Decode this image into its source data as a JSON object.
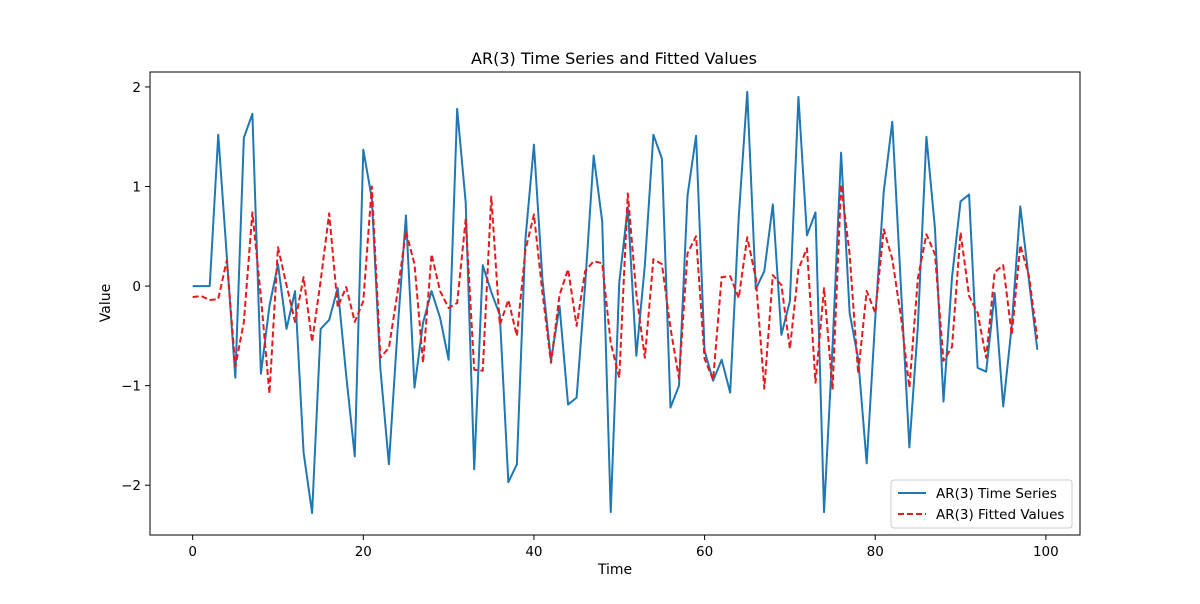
{
  "chart_data": {
    "type": "line",
    "title": "AR(3) Time Series and Fitted Values",
    "xlabel": "Time",
    "ylabel": "Value",
    "xlim": [
      -5,
      104
    ],
    "ylim": [
      -2.5,
      2.15
    ],
    "xticks": [
      0,
      20,
      40,
      60,
      80,
      100
    ],
    "yticks": [
      -2,
      -1,
      0,
      1,
      2
    ],
    "ytick_labels": [
      "−2",
      "−1",
      "0",
      "1",
      "2"
    ],
    "grid": false,
    "legend_position": "bottom-right",
    "series": [
      {
        "name": "AR(3) Time Series",
        "color": "#1f77b4",
        "style": "solid",
        "x": [
          0,
          1,
          2,
          3,
          4,
          5,
          6,
          7,
          8,
          9,
          10,
          11,
          12,
          13,
          14,
          15,
          16,
          17,
          18,
          19,
          20,
          21,
          22,
          23,
          24,
          25,
          26,
          27,
          28,
          29,
          30,
          31,
          32,
          33,
          34,
          35,
          36,
          37,
          38,
          39,
          40,
          41,
          42,
          43,
          44,
          45,
          46,
          47,
          48,
          49,
          50,
          51,
          52,
          53,
          54,
          55,
          56,
          57,
          58,
          59,
          60,
          61,
          62,
          63,
          64,
          65,
          66,
          67,
          68,
          69,
          70,
          71,
          72,
          73,
          74,
          75,
          76,
          77,
          78,
          79,
          80,
          81,
          82,
          83,
          84,
          85,
          86,
          87,
          88,
          89,
          90,
          91,
          92,
          93,
          94,
          95,
          96,
          97,
          98,
          99
        ],
        "y": [
          0,
          0,
          0,
          1.52,
          0.3,
          -0.92,
          1.49,
          1.73,
          -0.88,
          -0.2,
          0.22,
          -0.43,
          -0.05,
          -1.67,
          -2.28,
          -0.43,
          -0.34,
          -0.02,
          -0.9,
          -1.71,
          1.37,
          0.88,
          -0.83,
          -1.79,
          -0.46,
          0.71,
          -1.02,
          -0.37,
          -0.05,
          -0.32,
          -0.74,
          1.78,
          0.84,
          -1.84,
          0.21,
          -0.06,
          -0.29,
          -1.97,
          -1.79,
          0.47,
          1.42,
          0.06,
          -0.75,
          -0.2,
          -1.19,
          -1.12,
          0.01,
          1.31,
          0.65,
          -2.27,
          0.04,
          0.79,
          -0.7,
          0.21,
          1.52,
          1.28,
          -1.22,
          -1.0,
          0.91,
          1.51,
          -0.65,
          -0.95,
          -0.74,
          -1.07,
          0.69,
          1.95,
          -0.03,
          0.15,
          0.82,
          -0.49,
          -0.15,
          1.9,
          0.51,
          0.74,
          -2.27,
          -0.6,
          1.34,
          -0.27,
          -0.73,
          -1.78,
          -0.33,
          0.95,
          1.65,
          0.01,
          -1.62,
          -0.4,
          1.5,
          0.58,
          -1.16,
          0.09,
          0.85,
          0.92,
          -0.82,
          -0.86,
          -0.07,
          -1.21,
          -0.4,
          0.8,
          0.07,
          -0.64
        ]
      },
      {
        "name": "AR(3) Fitted Values",
        "color": "#e41a1c",
        "style": "dashed",
        "x": [
          0,
          1,
          2,
          3,
          4,
          5,
          6,
          7,
          8,
          9,
          10,
          11,
          12,
          13,
          14,
          15,
          16,
          17,
          18,
          19,
          20,
          21,
          22,
          23,
          24,
          25,
          26,
          27,
          28,
          29,
          30,
          31,
          32,
          33,
          34,
          35,
          36,
          37,
          38,
          39,
          40,
          41,
          42,
          43,
          44,
          45,
          46,
          47,
          48,
          49,
          50,
          51,
          52,
          53,
          54,
          55,
          56,
          57,
          58,
          59,
          60,
          61,
          62,
          63,
          64,
          65,
          66,
          67,
          68,
          69,
          70,
          71,
          72,
          73,
          74,
          75,
          76,
          77,
          78,
          79,
          80,
          81,
          82,
          83,
          84,
          85,
          86,
          87,
          88,
          89,
          90,
          91,
          92,
          93,
          94,
          95,
          96,
          97,
          98,
          99
        ],
        "y": [
          -0.11,
          -0.1,
          -0.14,
          -0.13,
          0.26,
          -0.81,
          -0.36,
          0.74,
          -0.11,
          -1.08,
          0.39,
          0.01,
          -0.36,
          0.09,
          -0.56,
          0.05,
          0.73,
          -0.21,
          -0.01,
          -0.36,
          -0.15,
          1.0,
          -0.72,
          -0.62,
          -0.07,
          0.55,
          0.22,
          -0.77,
          0.32,
          -0.05,
          -0.22,
          -0.17,
          0.67,
          -0.84,
          -0.85,
          0.9,
          -0.39,
          -0.14,
          -0.5,
          0.36,
          0.72,
          -0.07,
          -0.77,
          -0.09,
          0.17,
          -0.4,
          0.15,
          0.25,
          0.23,
          -0.57,
          -0.92,
          0.93,
          -0.08,
          -0.72,
          0.27,
          0.22,
          -0.42,
          -0.93,
          0.33,
          0.5,
          -0.73,
          -0.94,
          0.09,
          0.1,
          -0.12,
          0.49,
          0.08,
          -1.03,
          0.11,
          0.01,
          -0.63,
          0.17,
          0.38,
          -0.97,
          -0.02,
          -1.04,
          1.02,
          0.32,
          -0.88,
          -0.05,
          -0.27,
          0.57,
          0.27,
          -0.3,
          -1.02,
          0.08,
          0.52,
          0.32,
          -0.75,
          -0.61,
          0.54,
          -0.1,
          -0.27,
          -0.72,
          0.14,
          0.21,
          -0.49,
          0.41,
          0.11,
          -0.53
        ]
      }
    ]
  }
}
